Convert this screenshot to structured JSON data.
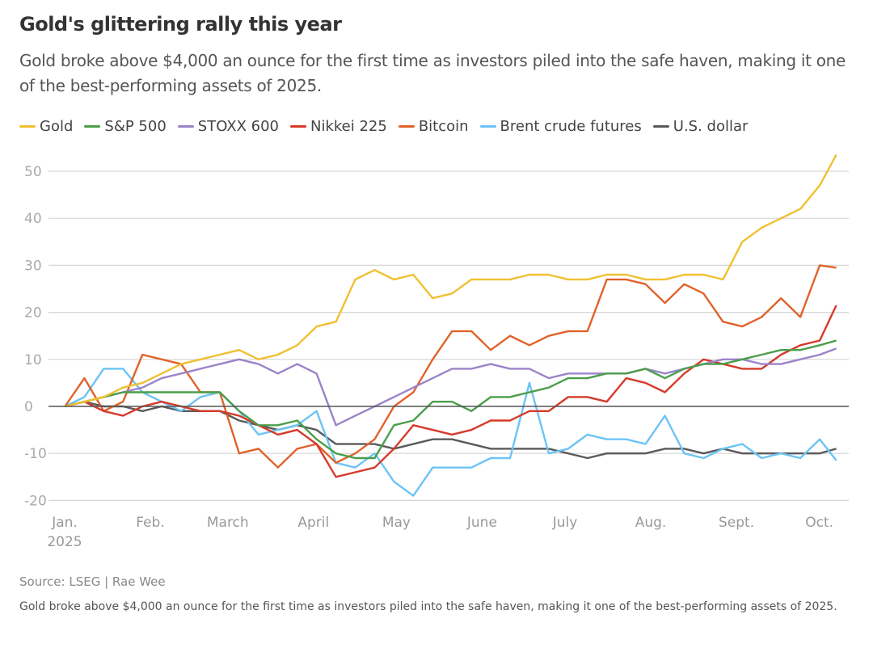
{
  "title": "Gold's glittering rally this year",
  "subtitle": "Gold broke above $4,000 an ounce for the first time as investors piled into the safe haven, making it one of the best-performing assets of 2025.",
  "source": "Source: LSEG | Rae Wee",
  "caption": "Gold broke above $4,000 an ounce for the first time as investors piled into the safe haven, making it one of the best-performing assets of 2025.",
  "chart_data": {
    "type": "line",
    "title": "Gold's glittering rally this year",
    "xlabel": "",
    "ylabel": "",
    "ylim": [
      -20,
      55
    ],
    "yticks": [
      -20,
      -10,
      0,
      10,
      20,
      30,
      40,
      50
    ],
    "grid": true,
    "legend_placement": "top",
    "x_ticks": [
      {
        "date": "2025-01-01",
        "label": "Jan.",
        "sublabel": "2025"
      },
      {
        "date": "2025-02-01",
        "label": "Feb."
      },
      {
        "date": "2025-03-01",
        "label": "March"
      },
      {
        "date": "2025-04-01",
        "label": "April"
      },
      {
        "date": "2025-05-01",
        "label": "May"
      },
      {
        "date": "2025-06-01",
        "label": "June"
      },
      {
        "date": "2025-07-01",
        "label": "July"
      },
      {
        "date": "2025-08-01",
        "label": "Aug."
      },
      {
        "date": "2025-09-01",
        "label": "Sept."
      },
      {
        "date": "2025-10-01",
        "label": "Oct."
      }
    ],
    "x": [
      "2025-01-02",
      "2025-01-09",
      "2025-01-16",
      "2025-01-23",
      "2025-01-30",
      "2025-02-06",
      "2025-02-13",
      "2025-02-20",
      "2025-02-27",
      "2025-03-06",
      "2025-03-13",
      "2025-03-20",
      "2025-03-27",
      "2025-04-03",
      "2025-04-10",
      "2025-04-17",
      "2025-04-24",
      "2025-05-01",
      "2025-05-08",
      "2025-05-15",
      "2025-05-22",
      "2025-05-29",
      "2025-06-05",
      "2025-06-12",
      "2025-06-19",
      "2025-06-26",
      "2025-07-03",
      "2025-07-10",
      "2025-07-17",
      "2025-07-24",
      "2025-07-31",
      "2025-08-07",
      "2025-08-14",
      "2025-08-21",
      "2025-08-28",
      "2025-09-04",
      "2025-09-11",
      "2025-09-18",
      "2025-09-25",
      "2025-10-02",
      "2025-10-08"
    ],
    "series": [
      {
        "name": "Gold",
        "color": "#f0c030",
        "values": [
          0,
          1,
          2,
          4,
          5,
          7,
          9,
          10,
          11,
          12,
          10,
          11,
          13,
          17,
          18,
          27,
          29,
          27,
          28,
          23,
          24,
          27,
          27,
          27,
          28,
          28,
          27,
          27,
          28,
          28,
          27,
          27,
          28,
          28,
          27,
          35,
          38,
          40,
          42,
          47,
          53.5
        ]
      },
      {
        "name": "S&P 500",
        "color": "#4a9e4a",
        "values": [
          0,
          1,
          2,
          3,
          3,
          3,
          3,
          3,
          3,
          -1,
          -4,
          -4,
          -3,
          -7,
          -10,
          -11,
          -11,
          -4,
          -3,
          1,
          1,
          -1,
          2,
          2,
          3,
          4,
          6,
          6,
          7,
          7,
          8,
          6,
          8,
          9,
          9,
          10,
          11,
          12,
          12,
          13,
          14
        ]
      },
      {
        "name": "STOXX 600",
        "color": "#9b84c8",
        "values": [
          0,
          1,
          2,
          3,
          4,
          6,
          7,
          8,
          9,
          10,
          9,
          7,
          9,
          7,
          -4,
          -2,
          0,
          2,
          4,
          6,
          8,
          8,
          9,
          8,
          8,
          6,
          7,
          7,
          7,
          7,
          8,
          7,
          8,
          9,
          10,
          10,
          9,
          9,
          10,
          11,
          12.3
        ]
      },
      {
        "name": "Nikkei 225",
        "color": "#d63a2a",
        "values": [
          0,
          1,
          -1,
          -2,
          0,
          1,
          0,
          -1,
          -1,
          -2,
          -4,
          -6,
          -5,
          -8,
          -15,
          -14,
          -13,
          -9,
          -4,
          -5,
          -6,
          -5,
          -3,
          -3,
          -1,
          -1,
          2,
          2,
          1,
          6,
          5,
          3,
          7,
          10,
          9,
          8,
          8,
          11,
          13,
          14,
          21.5
        ]
      },
      {
        "name": "Bitcoin",
        "color": "#e0622a",
        "values": [
          0,
          6,
          -1,
          1,
          11,
          10,
          9,
          3,
          3,
          -10,
          -9,
          -13,
          -9,
          -8,
          -12,
          -10,
          -7,
          0,
          3,
          10,
          16,
          16,
          12,
          15,
          13,
          15,
          16,
          16,
          27,
          27,
          26,
          22,
          26,
          24,
          18,
          17,
          19,
          23,
          19,
          30,
          29.5
        ]
      },
      {
        "name": "Brent crude futures",
        "color": "#6cc4f5",
        "values": [
          0,
          2,
          8,
          8,
          3,
          1,
          -1,
          2,
          3,
          -1,
          -6,
          -5,
          -4,
          -1,
          -12,
          -13,
          -10,
          -16,
          -19,
          -13,
          -13,
          -13,
          -11,
          -11,
          5,
          -10,
          -9,
          -6,
          -7,
          -7,
          -8,
          -2,
          -10,
          -11,
          -9,
          -8,
          -11,
          -10,
          -11,
          -7,
          -11.5
        ]
      },
      {
        "name": "U.S. dollar",
        "color": "#5a5a5a",
        "values": [
          0,
          1,
          0,
          0,
          -1,
          0,
          -1,
          -1,
          -1,
          -3,
          -4,
          -5,
          -4,
          -5,
          -8,
          -8,
          -8,
          -9,
          -8,
          -7,
          -7,
          -8,
          -9,
          -9,
          -9,
          -9,
          -10,
          -11,
          -10,
          -10,
          -10,
          -9,
          -9,
          -10,
          -9,
          -10,
          -10,
          -10,
          -10,
          -10,
          -9
        ]
      }
    ]
  }
}
